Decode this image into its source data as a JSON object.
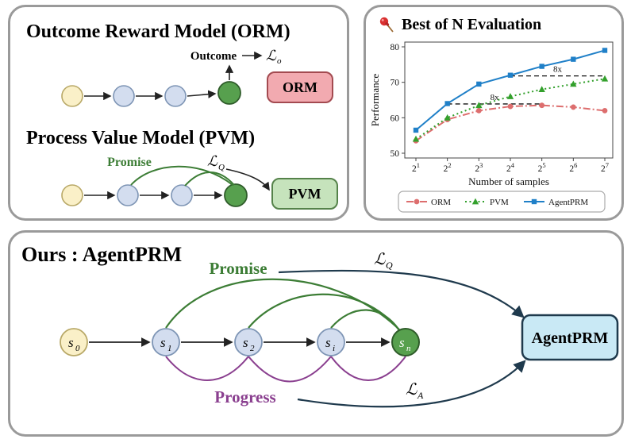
{
  "orm_panel": {
    "orm_title": "Outcome Reward Model (ORM)",
    "outcome_label": "Outcome",
    "orm_loss_main": "ℒ",
    "orm_loss_sub": "o",
    "orm_box_label": "ORM",
    "pvm_title": "Process Value Model (PVM)",
    "promise_label": "Promise",
    "pvm_loss_main": "ℒ",
    "pvm_loss_sub": "Q",
    "pvm_box_label": "PVM"
  },
  "eval_panel": {
    "pin_icon": "pushpin",
    "title": "Best of N Evaluation"
  },
  "ours_panel": {
    "title": "Ours : AgentPRM",
    "promise_label": "Promise",
    "progress_label": "Progress",
    "lq_main": "ℒ",
    "lq_sub": "Q",
    "la_main": "ℒ",
    "la_sub": "A",
    "box_label": "AgentPRM",
    "nodes": [
      {
        "base": "s",
        "sub": "0",
        "type": "start"
      },
      {
        "base": "s",
        "sub": "1",
        "type": "mid"
      },
      {
        "base": "s",
        "sub": "2",
        "type": "mid"
      },
      {
        "base": "s",
        "sub": "i",
        "type": "mid"
      },
      {
        "base": "s",
        "sub": "n",
        "type": "final"
      }
    ]
  },
  "chart_data": {
    "type": "line",
    "title": "Best of N Evaluation",
    "xlabel": "Number of samples",
    "ylabel": "Performance",
    "x_values": [
      2,
      4,
      8,
      16,
      32,
      64,
      128
    ],
    "x_tick_labels": [
      "2^1",
      "2^2",
      "2^3",
      "2^4",
      "2^5",
      "2^6",
      "2^7"
    ],
    "yticks": [
      50,
      60,
      70,
      80
    ],
    "ylim": [
      50,
      80
    ],
    "grid": false,
    "legend_position": "bottom",
    "series": [
      {
        "name": "ORM",
        "color": "#dd6e6e",
        "line": "dashdot",
        "marker": "circle",
        "values": [
          53.5,
          59.5,
          62,
          63.2,
          63.5,
          63,
          62
        ]
      },
      {
        "name": "PVM",
        "color": "#33a02c",
        "line": "dotted",
        "marker": "triangle",
        "values": [
          54,
          60,
          63.5,
          66,
          68,
          69.5,
          71
        ]
      },
      {
        "name": "AgentPRM",
        "color": "#2080c8",
        "line": "solid",
        "marker": "square",
        "values": [
          56.5,
          64,
          69.5,
          72,
          74.5,
          76.5,
          79
        ]
      }
    ],
    "annotations": [
      {
        "text": "8x",
        "y": 71.8,
        "x_from_index": 3,
        "x_to_index": 6
      },
      {
        "text": "8x",
        "y": 63.9,
        "x_from_index": 1,
        "x_to_index": 4
      }
    ]
  },
  "colors": {
    "node_yellow_fill": "#faf0c8",
    "node_yellow_stroke": "#b9a968",
    "node_blue_fill": "#d3ddef",
    "node_blue_stroke": "#7e95b5",
    "node_green_fill": "#57a04e",
    "node_green_stroke": "#2f5c2a",
    "orm_box_fill": "#f2aab0",
    "orm_box_stroke": "#a34a50",
    "pvm_box_fill": "#c6e3bc",
    "pvm_box_stroke": "#55824a",
    "agentprm_box_fill": "#c9e9f5",
    "agentprm_box_stroke": "#1f3a4d",
    "promise_green": "#3c7d35",
    "progress_purple": "#8a3f8f",
    "arrow_dark": "#1f3a4d"
  }
}
